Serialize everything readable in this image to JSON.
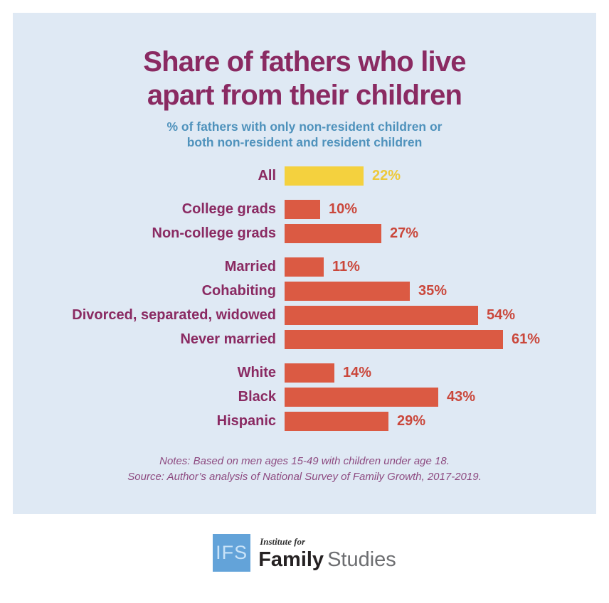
{
  "chart_data": {
    "type": "bar",
    "orientation": "horizontal",
    "title": "Share of fathers who live\napart from their children",
    "subtitle": "% of fathers with only non-resident children or\nboth non-resident and resident children",
    "value_suffix": "%",
    "xlim": [
      0,
      65
    ],
    "grid": false,
    "legend": "none",
    "groups": [
      {
        "name": "overall",
        "rows": [
          {
            "label": "All",
            "value": 22,
            "highlight": true
          }
        ]
      },
      {
        "name": "education",
        "rows": [
          {
            "label": "College grads",
            "value": 10,
            "highlight": false
          },
          {
            "label": "Non-college grads",
            "value": 27,
            "highlight": false
          }
        ]
      },
      {
        "name": "marital-status",
        "rows": [
          {
            "label": "Married",
            "value": 11,
            "highlight": false
          },
          {
            "label": "Cohabiting",
            "value": 35,
            "highlight": false
          },
          {
            "label": "Divorced, separated, widowed",
            "value": 54,
            "highlight": false
          },
          {
            "label": "Never married",
            "value": 61,
            "highlight": false
          }
        ]
      },
      {
        "name": "race-ethnicity",
        "rows": [
          {
            "label": "White",
            "value": 14,
            "highlight": false
          },
          {
            "label": "Black",
            "value": 43,
            "highlight": false
          },
          {
            "label": "Hispanic",
            "value": 29,
            "highlight": false
          }
        ]
      }
    ],
    "notes": "Notes: Based on men ages 15-49 with children under age 18.",
    "source": "Source: Author’s analysis of National Survey of Family Growth, 2017-2019.",
    "colors": {
      "panel_bg": "#dfe9f4",
      "title": "#8a2a62",
      "subtitle": "#4f92bc",
      "bar": "#db5a43",
      "bar_highlight": "#f4d13e",
      "value": "#ca473b",
      "value_highlight": "#edc93a",
      "notes": "#8d4a80",
      "logo_blue": "#63a3d9"
    }
  },
  "footer": {
    "logo_acronym": "IFS",
    "logo_top": "Institute for",
    "logo_bold": "Family",
    "logo_regular": "Studies"
  }
}
